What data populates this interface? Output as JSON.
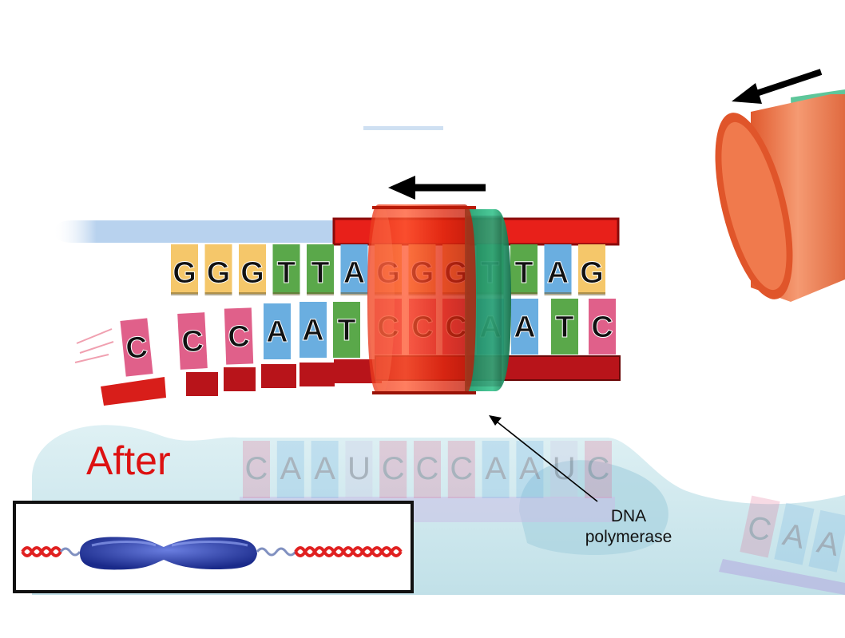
{
  "top_strand": [
    "G",
    "G",
    "G",
    "T",
    "T",
    "A",
    "G",
    "G",
    "G",
    "T",
    "T",
    "A",
    "G"
  ],
  "bottom_strand": [
    "C",
    "C",
    "C",
    "A",
    "A",
    "T",
    "C",
    "C",
    "C",
    "A",
    "A",
    "T",
    "C"
  ],
  "rna_template": [
    "C",
    "A",
    "A",
    "U",
    "C",
    "C",
    "C",
    "A",
    "A",
    "U",
    "C"
  ],
  "corner_bases": [
    "C",
    "A",
    "A"
  ],
  "base_colors": {
    "G": "#f5c76a",
    "T": "#5aa84a",
    "A": "#6aaee0",
    "C": "#e0608a",
    "U": "#c8c0e0"
  },
  "after_label": "After",
  "after_color": "#dd1111",
  "callout": {
    "line1": "DNA",
    "line2": "polymerase"
  }
}
